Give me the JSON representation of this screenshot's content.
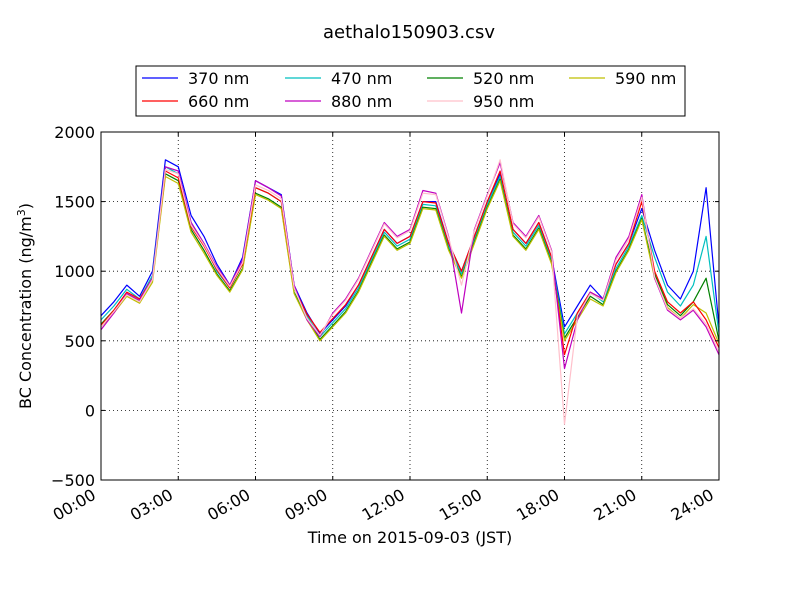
{
  "chart_data": {
    "type": "line",
    "title": "aethalo150903.csv",
    "xlabel": "Time on 2015-09-03 (JST)",
    "ylabel": "BC Concentration (ng/m",
    "ylabel_superscript": "3",
    "ylabel_suffix": ")",
    "xlim": [
      "00:00",
      "24:00"
    ],
    "ylim": [
      -500,
      2000
    ],
    "x_ticks": [
      "00:00",
      "03:00",
      "06:00",
      "09:00",
      "12:00",
      "15:00",
      "18:00",
      "21:00",
      "24:00"
    ],
    "y_ticks": [
      "2000",
      "1500",
      "1000",
      "500",
      "0",
      "−500"
    ],
    "grid": true,
    "legend_position": "top",
    "x": [
      "00:00",
      "00:30",
      "01:00",
      "01:30",
      "02:00",
      "02:30",
      "03:00",
      "03:30",
      "04:00",
      "04:30",
      "05:00",
      "05:30",
      "06:00",
      "06:30",
      "07:00",
      "07:30",
      "08:00",
      "08:30",
      "09:00",
      "09:30",
      "10:00",
      "10:30",
      "11:00",
      "11:30",
      "12:00",
      "12:30",
      "13:00",
      "13:30",
      "14:00",
      "14:30",
      "15:00",
      "15:30",
      "16:00",
      "16:30",
      "17:00",
      "17:30",
      "18:00",
      "18:30",
      "19:00",
      "19:30",
      "20:00",
      "20:30",
      "21:00",
      "21:30",
      "22:00",
      "22:30",
      "23:00",
      "23:30",
      "24:00"
    ],
    "series": [
      {
        "name": "370 nm",
        "color": "#0000ff",
        "values": [
          680,
          780,
          900,
          820,
          1000,
          1800,
          1750,
          1400,
          1250,
          1050,
          900,
          1100,
          1650,
          1600,
          1550,
          900,
          700,
          550,
          650,
          750,
          900,
          1100,
          1300,
          1200,
          1250,
          1500,
          1500,
          1200,
          1000,
          1250,
          1500,
          1700,
          1300,
          1200,
          1350,
          1100,
          600,
          750,
          900,
          800,
          1050,
          1200,
          1450,
          1150,
          900,
          800,
          1000,
          1600,
          600
        ]
      },
      {
        "name": "470 nm",
        "color": "#00bfbf",
        "values": [
          650,
          750,
          870,
          800,
          970,
          1750,
          1700,
          1350,
          1200,
          1000,
          880,
          1050,
          1600,
          1560,
          1500,
          880,
          680,
          530,
          630,
          730,
          880,
          1080,
          1280,
          1180,
          1230,
          1480,
          1470,
          1180,
          980,
          1230,
          1480,
          1680,
          1280,
          1180,
          1330,
          1080,
          550,
          700,
          850,
          780,
          1020,
          1180,
          1400,
          1100,
          850,
          750,
          900,
          1250,
          550
        ]
      },
      {
        "name": "520 nm",
        "color": "#008000",
        "values": [
          620,
          720,
          840,
          780,
          940,
          1700,
          1650,
          1300,
          1150,
          980,
          860,
          1020,
          1560,
          1520,
          1460,
          850,
          660,
          510,
          610,
          710,
          860,
          1060,
          1260,
          1160,
          1210,
          1460,
          1450,
          1160,
          960,
          1210,
          1460,
          1660,
          1260,
          1160,
          1310,
          1060,
          520,
          670,
          820,
          760,
          1000,
          1160,
          1380,
          980,
          760,
          680,
          780,
          950,
          500
        ]
      },
      {
        "name": "590 nm",
        "color": "#bfbf00",
        "values": [
          600,
          700,
          820,
          770,
          920,
          1680,
          1630,
          1280,
          1130,
          970,
          850,
          1010,
          1550,
          1510,
          1450,
          840,
          650,
          500,
          600,
          700,
          850,
          1050,
          1250,
          1150,
          1200,
          1450,
          1440,
          1150,
          950,
          1200,
          1450,
          1650,
          1250,
          1150,
          1300,
          1050,
          500,
          650,
          800,
          750,
          990,
          1150,
          1370,
          950,
          740,
          660,
          760,
          700,
          480
        ]
      },
      {
        "name": "660 nm",
        "color": "#ff0000",
        "values": [
          610,
          720,
          850,
          800,
          950,
          1720,
          1670,
          1320,
          1180,
          1010,
          880,
          1050,
          1600,
          1560,
          1500,
          880,
          690,
          560,
          660,
          760,
          900,
          1100,
          1300,
          1200,
          1250,
          1500,
          1490,
          1200,
          1000,
          1250,
          1500,
          1720,
          1300,
          1200,
          1350,
          1100,
          400,
          700,
          850,
          800,
          1050,
          1200,
          1500,
          1000,
          780,
          700,
          780,
          650,
          450
        ]
      },
      {
        "name": "880 nm",
        "color": "#bf00bf",
        "values": [
          580,
          700,
          840,
          790,
          950,
          1750,
          1720,
          1350,
          1200,
          1030,
          900,
          1080,
          1650,
          1600,
          1540,
          900,
          650,
          530,
          700,
          800,
          950,
          1150,
          1350,
          1250,
          1300,
          1580,
          1560,
          1250,
          700,
          1300,
          1550,
          1780,
          1350,
          1250,
          1400,
          1150,
          300,
          650,
          850,
          800,
          1100,
          1250,
          1550,
          950,
          720,
          650,
          720,
          600,
          400
        ]
      },
      {
        "name": "950 nm",
        "color": "#ffc0cb",
        "values": [
          600,
          710,
          830,
          780,
          940,
          1730,
          1700,
          1330,
          1190,
          1020,
          890,
          1060,
          1620,
          1580,
          1520,
          880,
          660,
          540,
          690,
          790,
          940,
          1140,
          1340,
          1240,
          1290,
          1560,
          1550,
          1240,
          900,
          1290,
          1540,
          1800,
          1340,
          1240,
          1390,
          1140,
          -100,
          680,
          840,
          790,
          1080,
          1230,
          1530,
          960,
          730,
          660,
          730,
          620,
          420
        ]
      }
    ]
  }
}
